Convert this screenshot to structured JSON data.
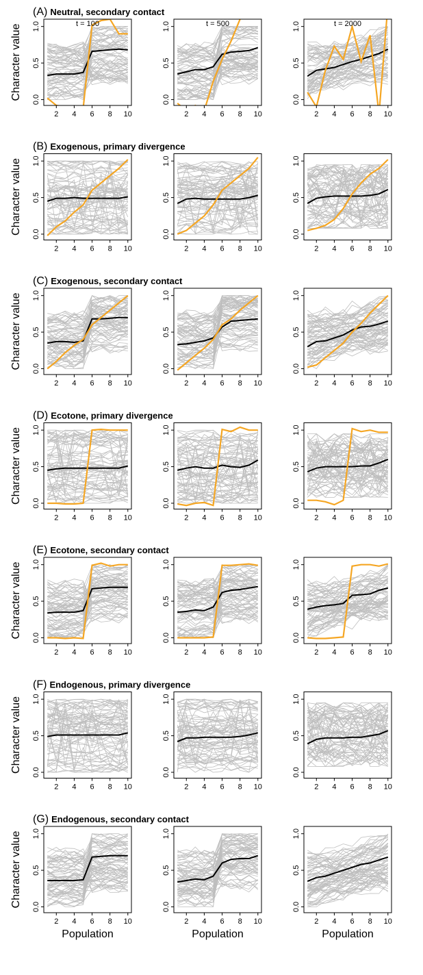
{
  "figure": {
    "ylabel": "Character value",
    "xlabel": "Population",
    "time_labels": [
      "t = 100",
      "t = 500",
      "t = 2000"
    ]
  },
  "rows": [
    {
      "letter": "(A)",
      "title": "Neutral, secondary contact"
    },
    {
      "letter": "(B)",
      "title": "Exogenous, primary divergence"
    },
    {
      "letter": "(C)",
      "title": "Exogenous, secondary contact"
    },
    {
      "letter": "(D)",
      "title": "Ecotone, primary divergence"
    },
    {
      "letter": "(E)",
      "title": "Ecotone, secondary contact"
    },
    {
      "letter": "(F)",
      "title": "Endogenous, primary divergence"
    },
    {
      "letter": "(G)",
      "title": "Endogenous, secondary contact"
    }
  ],
  "colors": {
    "background_lines": "#bebebe",
    "mean_line": "#000000",
    "highlight_line": "#f5a623"
  },
  "chart_data": {
    "type": "line",
    "layout": "7 rows x 3 columns of panels",
    "x": [
      1,
      2,
      3,
      4,
      5,
      6,
      7,
      8,
      9,
      10
    ],
    "xticks": [
      2,
      4,
      6,
      8,
      10
    ],
    "yticks": [
      0.0,
      0.5,
      1.0
    ],
    "ytick_labels": [
      "0.0",
      "0.5",
      "1.0"
    ],
    "xlim": [
      0.6,
      10.4
    ],
    "ylim": [
      -0.08,
      1.1
    ],
    "panels": [
      [
        {
          "background": "sec",
          "mean": [
            0.33,
            0.35,
            0.35,
            0.35,
            0.37,
            0.66,
            0.67,
            0.68,
            0.69,
            0.68
          ],
          "highlight": [
            0.02,
            -0.08,
            -0.1,
            -0.2,
            -0.12,
            1.02,
            1.08,
            1.1,
            0.9,
            0.9
          ]
        },
        {
          "background": "sec",
          "mean": [
            0.35,
            0.38,
            0.41,
            0.41,
            0.45,
            0.62,
            0.65,
            0.66,
            0.67,
            0.71
          ],
          "highlight": [
            -0.05,
            -0.15,
            -0.08,
            -0.15,
            0.25,
            0.55,
            0.8,
            1.1,
            1.2,
            1.25
          ]
        },
        {
          "background": "sec_weak",
          "mean": [
            0.32,
            0.4,
            0.42,
            0.44,
            0.48,
            0.52,
            0.55,
            0.59,
            0.63,
            0.69
          ],
          "highlight": [
            0.1,
            -0.1,
            0.4,
            0.73,
            0.55,
            1.0,
            0.52,
            0.88,
            -0.2,
            1.3
          ]
        }
      ],
      [
        {
          "background": "uniform",
          "mean": [
            0.45,
            0.49,
            0.49,
            0.5,
            0.49,
            0.49,
            0.49,
            0.49,
            0.49,
            0.51
          ],
          "highlight": [
            -0.02,
            0.1,
            0.18,
            0.3,
            0.4,
            0.6,
            0.7,
            0.8,
            0.9,
            1.02
          ]
        },
        {
          "background": "uniform",
          "mean": [
            0.42,
            0.48,
            0.49,
            0.48,
            0.48,
            0.48,
            0.48,
            0.48,
            0.5,
            0.53
          ],
          "highlight": [
            0.0,
            0.05,
            0.15,
            0.25,
            0.4,
            0.6,
            0.7,
            0.8,
            0.9,
            1.05
          ]
        },
        {
          "background": "uniform_narrow",
          "mean": [
            0.42,
            0.49,
            0.51,
            0.52,
            0.52,
            0.52,
            0.52,
            0.53,
            0.55,
            0.61
          ],
          "highlight": [
            0.05,
            0.08,
            0.12,
            0.2,
            0.35,
            0.55,
            0.7,
            0.82,
            0.9,
            1.02
          ]
        }
      ],
      [
        {
          "background": "sec",
          "mean": [
            0.35,
            0.37,
            0.37,
            0.36,
            0.38,
            0.68,
            0.68,
            0.69,
            0.7,
            0.7
          ],
          "highlight": [
            0.0,
            0.1,
            0.22,
            0.32,
            0.4,
            0.6,
            0.7,
            0.8,
            0.9,
            1.0
          ]
        },
        {
          "background": "sec",
          "mean": [
            0.33,
            0.34,
            0.36,
            0.38,
            0.42,
            0.57,
            0.65,
            0.66,
            0.67,
            0.68
          ],
          "highlight": [
            -0.02,
            0.08,
            0.18,
            0.28,
            0.4,
            0.6,
            0.68,
            0.8,
            0.9,
            1.0
          ]
        },
        {
          "background": "sec_weak",
          "mean": [
            0.3,
            0.37,
            0.38,
            0.42,
            0.46,
            0.53,
            0.57,
            0.58,
            0.61,
            0.65
          ],
          "highlight": [
            0.02,
            0.05,
            0.15,
            0.25,
            0.35,
            0.5,
            0.62,
            0.76,
            0.88,
            1.0
          ]
        }
      ],
      [
        {
          "background": "uniform",
          "mean": [
            0.45,
            0.47,
            0.48,
            0.48,
            0.48,
            0.48,
            0.48,
            0.48,
            0.48,
            0.51
          ],
          "highlight": [
            0.0,
            0.0,
            -0.01,
            -0.01,
            0.0,
            1.0,
            1.01,
            1.0,
            1.0,
            1.0
          ]
        },
        {
          "background": "uniform",
          "mean": [
            0.45,
            0.48,
            0.5,
            0.48,
            0.48,
            0.52,
            0.5,
            0.49,
            0.52,
            0.59
          ],
          "highlight": [
            -0.01,
            -0.03,
            0.0,
            0.01,
            -0.03,
            1.01,
            0.98,
            1.04,
            1.0,
            1.0
          ]
        },
        {
          "background": "uniform_narrow",
          "mean": [
            0.43,
            0.48,
            0.5,
            0.5,
            0.5,
            0.5,
            0.51,
            0.51,
            0.55,
            0.6
          ],
          "highlight": [
            0.04,
            0.04,
            0.02,
            -0.02,
            0.04,
            1.02,
            0.98,
            1.0,
            0.97,
            0.97
          ]
        }
      ],
      [
        {
          "background": "sec",
          "mean": [
            0.34,
            0.35,
            0.35,
            0.35,
            0.37,
            0.67,
            0.68,
            0.69,
            0.69,
            0.69
          ],
          "highlight": [
            0.0,
            0.0,
            -0.01,
            0.0,
            -0.01,
            0.99,
            1.02,
            0.98,
            1.0,
            1.0
          ]
        },
        {
          "background": "sec",
          "mean": [
            0.35,
            0.36,
            0.38,
            0.37,
            0.42,
            0.62,
            0.65,
            0.66,
            0.68,
            0.7
          ],
          "highlight": [
            0.0,
            0.0,
            0.0,
            0.0,
            0.01,
            0.99,
            0.99,
            1.0,
            1.01,
            0.99
          ]
        },
        {
          "background": "sec_weak",
          "mean": [
            0.39,
            0.42,
            0.44,
            0.45,
            0.47,
            0.58,
            0.59,
            0.6,
            0.65,
            0.68
          ],
          "highlight": [
            0.0,
            -0.01,
            -0.01,
            0.0,
            0.01,
            0.98,
            1.0,
            1.0,
            0.98,
            1.01
          ]
        }
      ],
      [
        {
          "background": "uniform",
          "mean": [
            0.49,
            0.51,
            0.51,
            0.51,
            0.51,
            0.51,
            0.51,
            0.51,
            0.51,
            0.54
          ],
          "highlight": []
        },
        {
          "background": "uniform",
          "mean": [
            0.42,
            0.47,
            0.47,
            0.48,
            0.48,
            0.48,
            0.48,
            0.49,
            0.51,
            0.54
          ],
          "highlight": []
        },
        {
          "background": "uniform_narrow",
          "mean": [
            0.39,
            0.45,
            0.47,
            0.47,
            0.47,
            0.48,
            0.48,
            0.5,
            0.52,
            0.57
          ],
          "highlight": []
        }
      ],
      [
        {
          "background": "sec",
          "mean": [
            0.36,
            0.36,
            0.36,
            0.36,
            0.37,
            0.68,
            0.69,
            0.7,
            0.7,
            0.7
          ],
          "highlight": []
        },
        {
          "background": "sec",
          "mean": [
            0.34,
            0.36,
            0.38,
            0.37,
            0.42,
            0.6,
            0.65,
            0.66,
            0.66,
            0.7
          ],
          "highlight": []
        },
        {
          "background": "sec_weak",
          "mean": [
            0.35,
            0.4,
            0.42,
            0.46,
            0.5,
            0.54,
            0.58,
            0.6,
            0.64,
            0.68
          ],
          "highlight": []
        }
      ]
    ]
  }
}
